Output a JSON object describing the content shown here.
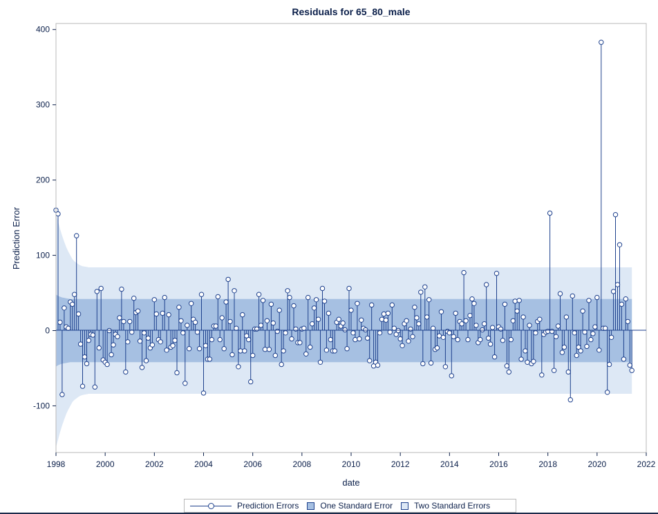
{
  "chart_data": {
    "type": "needle",
    "title": "Residuals for 65_80_male",
    "xlabel": "date",
    "ylabel": "Prediction Error",
    "xlim": [
      "1998-01-01",
      "2022-01-01"
    ],
    "ylim": [
      -162,
      408
    ],
    "x_ticks": [
      "1998",
      "2000",
      "2002",
      "2004",
      "2006",
      "2008",
      "2010",
      "2012",
      "2014",
      "2016",
      "2018",
      "2020",
      "2022"
    ],
    "y_ticks": [
      -100,
      0,
      100,
      200,
      300,
      400
    ],
    "grid": false,
    "legend_position": "bottom",
    "colors": {
      "series": "#1c3f8c",
      "one_se_band": "#a6c0e2",
      "two_se_band": "#dde8f5"
    },
    "legend": [
      "Prediction Errors",
      "One Standard Error",
      "Two Standard Errors"
    ],
    "series": [
      {
        "name": "Prediction Errors",
        "start": "1998-01",
        "frequency": "monthly",
        "values": [
          160,
          155,
          11,
          -85,
          30,
          5,
          3,
          38,
          35,
          48,
          126,
          22,
          -18,
          -74,
          -35,
          -44,
          -13,
          -5,
          -6,
          -75,
          52,
          -23,
          56,
          -39,
          -42,
          -45,
          0,
          -32,
          -19,
          -5,
          -8,
          17,
          55,
          12,
          -55,
          -15,
          12,
          -2,
          43,
          24,
          26,
          -14,
          -49,
          -3,
          -40,
          -10,
          -23,
          -19,
          41,
          22,
          -12,
          -15,
          23,
          44,
          -26,
          21,
          -22,
          -20,
          -13,
          -56,
          31,
          13,
          -3,
          -70,
          7,
          -24,
          36,
          15,
          11,
          -2,
          -24,
          48,
          -83,
          -20,
          -38,
          -38,
          -12,
          6,
          6,
          45,
          -12,
          17,
          -24,
          38,
          68,
          12,
          -32,
          53,
          3,
          -48,
          -27,
          21,
          -27,
          -7,
          -12,
          -68,
          -33,
          2,
          2,
          48,
          7,
          40,
          -25,
          13,
          -25,
          35,
          10,
          -33,
          -1,
          27,
          -45,
          -27,
          -3,
          53,
          44,
          -11,
          33,
          2,
          -16,
          -16,
          2,
          3,
          -31,
          44,
          -22,
          9,
          30,
          41,
          15,
          -42,
          56,
          39,
          -26,
          23,
          -12,
          -27,
          -27,
          11,
          15,
          6,
          10,
          1,
          -24,
          56,
          27,
          -3,
          -12,
          36,
          -11,
          14,
          3,
          1,
          -10,
          -40,
          34,
          -47,
          -42,
          -46,
          -3,
          15,
          22,
          14,
          23,
          -2,
          34,
          3,
          -5,
          0,
          -11,
          -20,
          9,
          13,
          -14,
          2,
          -8,
          31,
          17,
          9,
          51,
          -44,
          58,
          18,
          41,
          -43,
          3,
          -25,
          -23,
          -7,
          25,
          -9,
          -48,
          -1,
          -3,
          -60,
          -8,
          23,
          -12,
          12,
          9,
          77,
          13,
          -12,
          20,
          42,
          36,
          7,
          -16,
          -12,
          1,
          9,
          61,
          -10,
          -18,
          4,
          -35,
          76,
          5,
          2,
          -13,
          35,
          -47,
          -55,
          -12,
          13,
          39,
          26,
          40,
          -38,
          18,
          -27,
          -42,
          7,
          -44,
          -41,
          -3,
          12,
          15,
          -59,
          -5,
          -2,
          -1,
          156,
          -1,
          -53,
          -8,
          6,
          49,
          -29,
          -22,
          18,
          -55,
          -92,
          46,
          -3,
          -33,
          -22,
          -27,
          26,
          -2,
          -21,
          40,
          -12,
          -4,
          5,
          44,
          -26,
          383,
          3,
          3,
          -82,
          -45,
          -9,
          52,
          154,
          61,
          114,
          35,
          -38,
          42,
          12,
          -46,
          -53
        ]
      }
    ],
    "bands": {
      "one_se_half_width": [
        48,
        46,
        45,
        44,
        43.5,
        43,
        42.5,
        42
      ],
      "two_se_half_width": [
        155,
        145,
        135,
        126,
        118,
        111,
        105,
        100,
        95,
        92,
        90,
        88,
        86.5,
        85.5,
        85,
        84.5,
        84
      ]
    }
  }
}
